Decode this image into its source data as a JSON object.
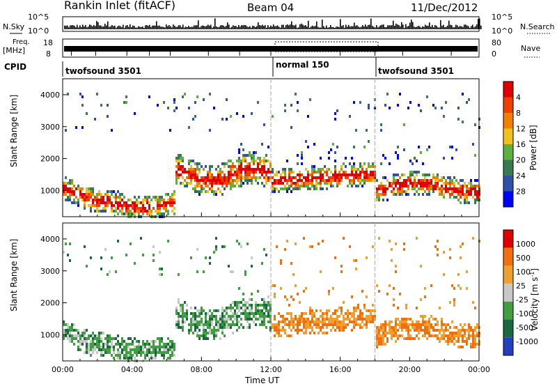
{
  "header": {
    "station": "Rankin Inlet (fitACF)",
    "beam": "Beam 04",
    "date": "11/Dec/2012"
  },
  "noise_panel": {
    "left_label": "N.Sky",
    "right_label": "N.Search",
    "left_ticks": [
      "10^5",
      "10^0"
    ],
    "right_ticks": [
      "10^5",
      "10^0"
    ]
  },
  "freq_panel": {
    "left_label_1": "Freq.",
    "left_label_2": "[MHz]",
    "left_ticks": [
      "18",
      "8"
    ],
    "right_ticks": [
      "80",
      "0"
    ],
    "right_label": "Nave"
  },
  "cpid": {
    "label": "CPID",
    "segments": [
      "twofsound 3501",
      "normal 150",
      "twofsound 3501"
    ]
  },
  "colors": {
    "power_scale": [
      "#0000ff",
      "#2f52a8",
      "#3a7a50",
      "#5cb040",
      "#f0c020",
      "#f08000",
      "#f04000",
      "#e00000"
    ],
    "velocity_scale": [
      "#2040c0",
      "#1a6a40",
      "#40a040",
      "#c8c8c8",
      "#f0a030",
      "#f07010",
      "#e00000"
    ]
  },
  "chart_data": [
    {
      "type": "heatmap",
      "name": "power",
      "ylabel": "Slant Range [km]",
      "xlabel": "",
      "x_ticks": [
        "00:00",
        "04:00",
        "08:00",
        "12:00",
        "16:00",
        "20:00",
        "00:00"
      ],
      "y_ticks": [
        "1000",
        "2000",
        "3000",
        "4000"
      ],
      "ylim": [
        180,
        4500
      ],
      "colorbar_label": "Power [dB]",
      "colorbar_ticks": [
        "4",
        "8",
        "12",
        "16",
        "20",
        "24",
        "28"
      ]
    },
    {
      "type": "heatmap",
      "name": "velocity",
      "ylabel": "Slant Range [km]",
      "xlabel": "Time UT",
      "x_ticks": [
        "00:00",
        "04:00",
        "08:00",
        "12:00",
        "16:00",
        "20:00",
        "00:00"
      ],
      "y_ticks": [
        "1000",
        "2000",
        "3000",
        "4000"
      ],
      "ylim": [
        180,
        4500
      ],
      "colorbar_label": "Velocity [m s",
      "colorbar_label_sup": "-1",
      "colorbar_label_end": "]",
      "colorbar_ticks": [
        "1000",
        "500",
        "100",
        "25",
        "-25",
        "-100",
        "-500",
        "-1000"
      ]
    }
  ]
}
